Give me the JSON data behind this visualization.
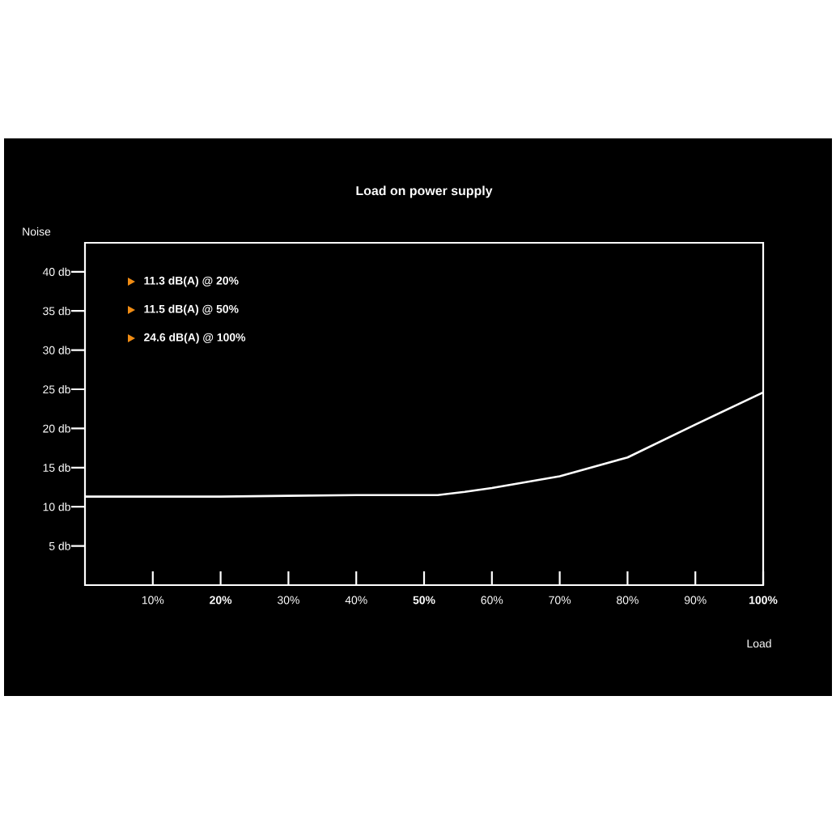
{
  "chart_data": {
    "type": "line",
    "title": "Load on power supply",
    "xlabel": "Load",
    "ylabel": "Noise",
    "x": [
      0,
      10,
      20,
      30,
      40,
      50,
      52,
      56,
      60,
      70,
      80,
      90,
      100
    ],
    "series": [
      {
        "color": "#ffffff",
        "values": [
          11.3,
          11.3,
          11.3,
          11.4,
          11.5,
          11.5,
          11.5,
          11.9,
          12.4,
          13.9,
          16.3,
          20.5,
          24.6
        ]
      }
    ],
    "xlim": [
      0,
      100
    ],
    "ylim": [
      0,
      43.7
    ],
    "xticks": [
      {
        "value": 10,
        "label": "10%"
      },
      {
        "value": 20,
        "label": "**20%**"
      },
      {
        "value": 30,
        "label": "30%"
      },
      {
        "value": 40,
        "label": "40%"
      },
      {
        "value": 50,
        "label": "**50%**"
      },
      {
        "value": 60,
        "label": "60%"
      },
      {
        "value": 70,
        "label": "70%"
      },
      {
        "value": 80,
        "label": "80%"
      },
      {
        "value": 90,
        "label": "90%"
      },
      {
        "value": 100,
        "label": "**100%**"
      }
    ],
    "yticks": [
      {
        "value": 5,
        "label": "5 db"
      },
      {
        "value": 10,
        "label": "10 db"
      },
      {
        "value": 15,
        "label": "15 db"
      },
      {
        "value": 20,
        "label": "20 db"
      },
      {
        "value": 25,
        "label": "25 db"
      },
      {
        "value": 30,
        "label": "30 db"
      },
      {
        "value": 35,
        "label": "35 db"
      },
      {
        "value": 40,
        "label": "40 db"
      }
    ],
    "annotations": [
      "11.3 dB(A) @ 20%",
      "11.5 dB(A) @ 50%",
      "24.6 dB(A) @ 100%"
    ],
    "marker": "none",
    "line_style": "solid"
  }
}
